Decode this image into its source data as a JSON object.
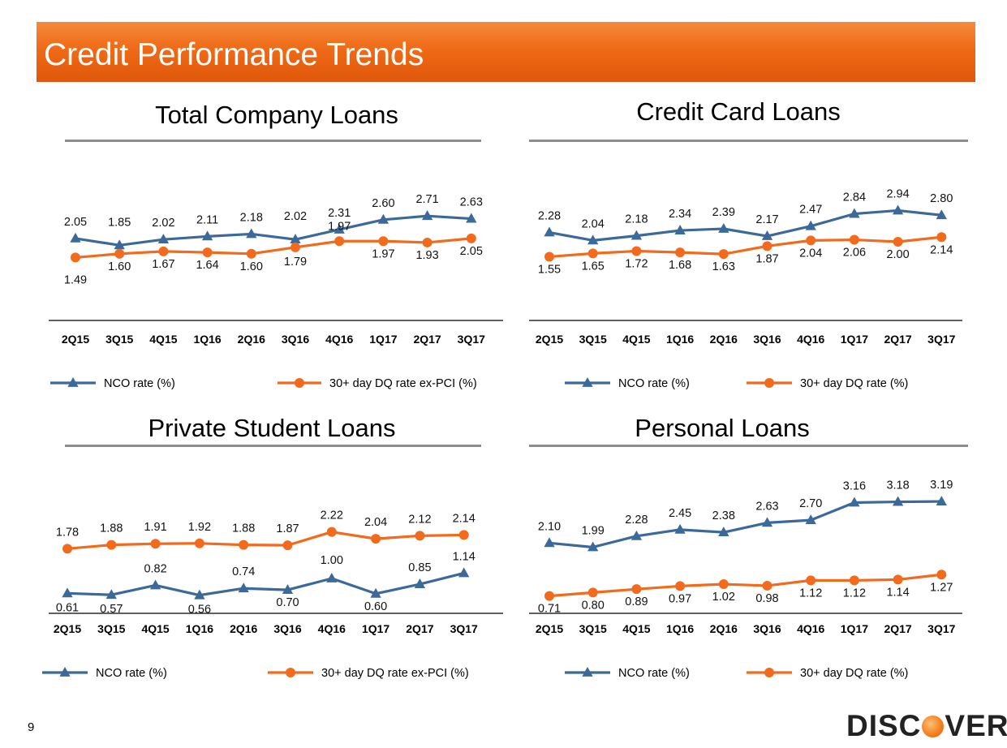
{
  "header": {
    "title": "Credit Performance Trends"
  },
  "footer": {
    "page_number": "9"
  },
  "logo": {
    "pre": "DISC",
    "post": "VER",
    "reg": "®"
  },
  "colors": {
    "nco": "#3b6a9a",
    "dq": "#f26b1d",
    "banner": "#ef6a16"
  },
  "chart_data": [
    {
      "type": "line",
      "title": "Total Company Loans",
      "categories": [
        "2Q15",
        "3Q15",
        "4Q15",
        "1Q16",
        "2Q16",
        "3Q16",
        "4Q16",
        "1Q17",
        "2Q17",
        "3Q17"
      ],
      "series": [
        {
          "name": "NCO rate (%)",
          "marker": "triangle",
          "values": [
            2.05,
            1.85,
            2.02,
            2.11,
            2.18,
            2.02,
            2.31,
            2.6,
            2.71,
            2.63
          ]
        },
        {
          "name": "30+ day DQ rate ex-PCI (%)",
          "marker": "circle",
          "values": [
            1.49,
            1.6,
            1.67,
            1.64,
            1.6,
            1.79,
            1.97,
            1.97,
            1.93,
            2.05
          ]
        }
      ],
      "ylim": [
        0,
        3.5
      ],
      "grid": false,
      "legend": "bottom"
    },
    {
      "type": "line",
      "title": "Credit Card Loans",
      "categories": [
        "2Q15",
        "3Q15",
        "4Q15",
        "1Q16",
        "2Q16",
        "3Q16",
        "4Q16",
        "1Q17",
        "2Q17",
        "3Q17"
      ],
      "series": [
        {
          "name": "NCO rate (%)",
          "marker": "triangle",
          "values": [
            2.28,
            2.04,
            2.18,
            2.34,
            2.39,
            2.17,
            2.47,
            2.84,
            2.94,
            2.8
          ]
        },
        {
          "name": "30+ day DQ rate (%)",
          "marker": "circle",
          "values": [
            1.55,
            1.65,
            1.72,
            1.68,
            1.63,
            1.87,
            2.04,
            2.06,
            2.0,
            2.14
          ]
        }
      ],
      "ylim": [
        0,
        3.5
      ],
      "grid": false,
      "legend": "bottom"
    },
    {
      "type": "line",
      "title": "Private Student Loans",
      "categories": [
        "2Q15",
        "3Q15",
        "4Q15",
        "1Q16",
        "2Q16",
        "3Q16",
        "4Q16",
        "1Q17",
        "2Q17",
        "3Q17"
      ],
      "series": [
        {
          "name": "NCO rate (%)",
          "marker": "triangle",
          "values": [
            0.61,
            0.57,
            0.82,
            0.56,
            0.74,
            0.7,
            1.0,
            0.6,
            0.85,
            1.14
          ]
        },
        {
          "name": "30+ day DQ rate ex-PCI (%)",
          "marker": "circle",
          "values": [
            1.78,
            1.88,
            1.91,
            1.92,
            1.88,
            1.87,
            2.22,
            2.04,
            2.12,
            2.14
          ]
        }
      ],
      "ylim": [
        0,
        2.5
      ],
      "grid": false,
      "legend": "bottom"
    },
    {
      "type": "line",
      "title": "Personal Loans",
      "categories": [
        "2Q15",
        "3Q15",
        "4Q15",
        "1Q16",
        "2Q16",
        "3Q16",
        "4Q16",
        "1Q17",
        "2Q17",
        "3Q17"
      ],
      "series": [
        {
          "name": "NCO rate (%)",
          "marker": "triangle",
          "values": [
            2.1,
            1.99,
            2.28,
            2.45,
            2.38,
            2.63,
            2.7,
            3.16,
            3.18,
            3.19
          ]
        },
        {
          "name": "30+ day DQ rate (%)",
          "marker": "circle",
          "values": [
            0.71,
            0.8,
            0.89,
            0.97,
            1.02,
            0.98,
            1.12,
            1.12,
            1.14,
            1.27
          ]
        }
      ],
      "ylim": [
        0,
        3.5
      ],
      "grid": false,
      "legend": "bottom"
    }
  ]
}
